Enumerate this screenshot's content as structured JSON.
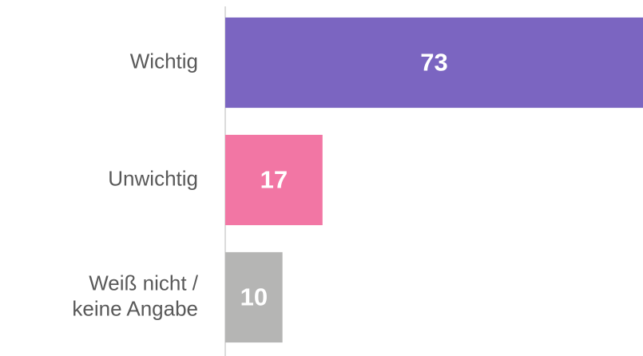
{
  "chart_data": {
    "type": "bar",
    "orientation": "horizontal",
    "categories": [
      "Wichtig",
      "Unwichtig",
      "Weiß nicht /\nkeine Angabe"
    ],
    "values": [
      73,
      17,
      10
    ],
    "colors": [
      "#7b65c1",
      "#f276a4",
      "#b5b5b4"
    ],
    "xlim": [
      0,
      73
    ]
  }
}
